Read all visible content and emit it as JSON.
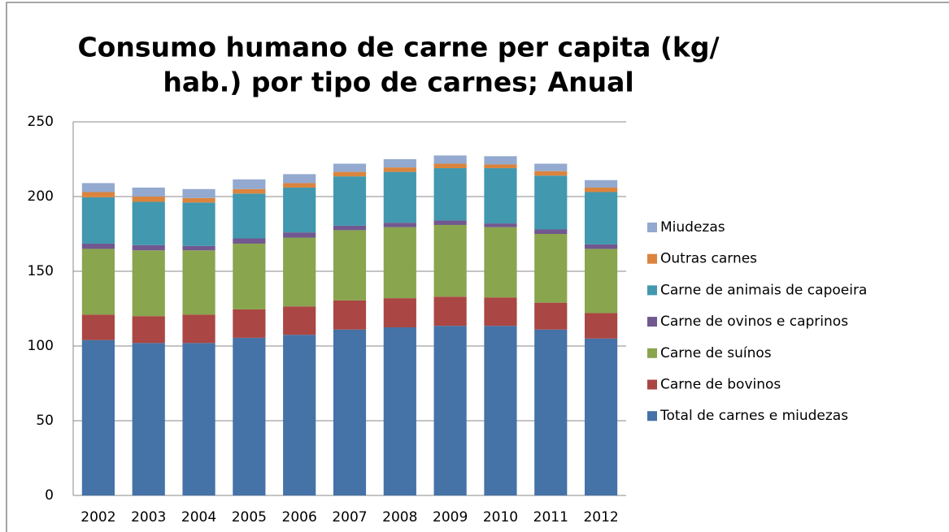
{
  "chart_data": {
    "type": "stacked_bar",
    "title": [
      "Consumo humano de carne per capita (kg/",
      "hab.) por tipo de carnes; Anual"
    ],
    "categories": [
      "2002",
      "2003",
      "2004",
      "2005",
      "2006",
      "2007",
      "2008",
      "2009",
      "2010",
      "2011",
      "2012"
    ],
    "series": [
      {
        "name": "Total de carnes e miudezas",
        "color": "#4572a7",
        "values": [
          104,
          102,
          102,
          105.5,
          107.5,
          111,
          112.5,
          113.5,
          113.5,
          111,
          105
        ]
      },
      {
        "name": "Carne de bovinos",
        "color": "#aa4643",
        "values": [
          17,
          18,
          19,
          19,
          19,
          19.5,
          19.5,
          19.5,
          19,
          18,
          17
        ]
      },
      {
        "name": "Carne de suínos",
        "color": "#89a54e",
        "values": [
          44,
          44,
          43,
          44,
          46,
          47,
          47.5,
          48,
          47,
          46,
          43
        ]
      },
      {
        "name": "Carne de ovinos e caprinos",
        "color": "#71588f",
        "values": [
          3.5,
          3.5,
          3,
          3.5,
          3.5,
          3,
          3,
          3,
          2.5,
          3,
          3
        ]
      },
      {
        "name": "Carne de animais de capoeira",
        "color": "#4198af",
        "values": [
          31,
          29,
          29,
          30,
          30,
          33,
          34,
          35,
          37,
          36,
          35
        ]
      },
      {
        "name": "Outras carnes",
        "color": "#db843d",
        "values": [
          3.5,
          3.5,
          3,
          3,
          3,
          3,
          3,
          3,
          2.5,
          3,
          3
        ]
      },
      {
        "name": "Miudezas",
        "color": "#93a9cf",
        "values": [
          6,
          6,
          6,
          6.5,
          6,
          5.5,
          5.5,
          5.5,
          5.5,
          5,
          5
        ]
      }
    ],
    "ylim": [
      0,
      250
    ],
    "yticks": [
      0,
      50,
      100,
      150,
      200,
      250
    ],
    "grid": true,
    "legend": "right"
  }
}
